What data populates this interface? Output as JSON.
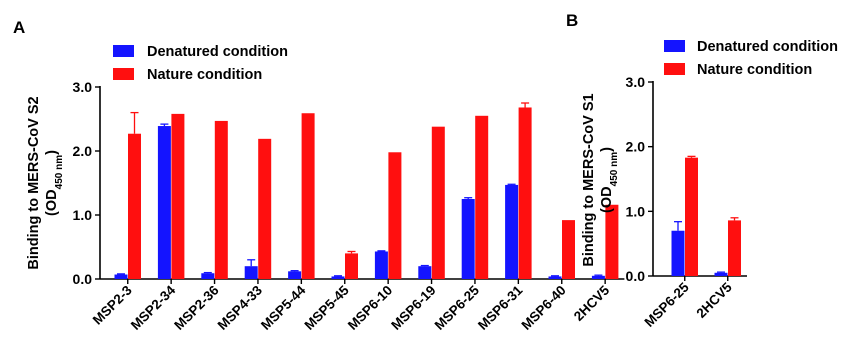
{
  "panels": [
    {
      "letter": "A",
      "chart_data": {
        "type": "bar",
        "title": "",
        "xlabel": "",
        "ylabel": "Binding to MERS-CoV S2",
        "ylabel_line2": {
          "main": "(OD",
          "sub": "450 nm",
          "close": ")"
        },
        "ylim": [
          0,
          3
        ],
        "yticks": [
          "0.0",
          "1.0",
          "2.0",
          "3.0"
        ],
        "grid": false,
        "legend_position": "top-left",
        "categories": [
          "MSP2-3",
          "MSP2-34",
          "MSP2-36",
          "MSP4-33",
          "MSP5-44",
          "MSP5-45",
          "MSP6-10",
          "MSP6-19",
          "MSP6-25",
          "MSP6-31",
          "MSP6-40",
          "2HCV5"
        ],
        "series": [
          {
            "name": "Denatured condition",
            "color": "#1414ff",
            "values": [
              0.07,
              2.39,
              0.09,
              0.2,
              0.12,
              0.04,
              0.43,
              0.2,
              1.25,
              1.47,
              0.04,
              0.05
            ],
            "errors": [
              0.01,
              0.03,
              0.01,
              0.1,
              0.01,
              0.01,
              0.01,
              0.01,
              0.02,
              0.01,
              0.01,
              0.01
            ]
          },
          {
            "name": "Nature condition",
            "color": "#ff0f0f",
            "values": [
              2.27,
              2.58,
              2.47,
              2.19,
              2.59,
              0.4,
              1.98,
              2.38,
              2.55,
              2.68,
              0.92,
              1.16
            ],
            "errors": [
              0.33,
              0.0,
              0.0,
              0.0,
              0.0,
              0.03,
              0.0,
              0.0,
              0.0,
              0.07,
              0.0,
              0.0
            ]
          }
        ]
      }
    },
    {
      "letter": "B",
      "chart_data": {
        "type": "bar",
        "title": "",
        "xlabel": "",
        "ylabel": "Binding to MERS-CoV S1",
        "ylabel_line2": {
          "main": "(OD",
          "sub": "450 nm",
          "close": ")"
        },
        "ylim": [
          0,
          3
        ],
        "yticks": [
          "0.0",
          "1.0",
          "2.0",
          "3.0"
        ],
        "grid": false,
        "legend_position": "top-left",
        "categories": [
          "MSP6-25",
          "2HCV5"
        ],
        "series": [
          {
            "name": "Denatured condition",
            "color": "#1414ff",
            "values": [
              0.7,
              0.05
            ],
            "errors": [
              0.14,
              0.01
            ]
          },
          {
            "name": "Nature condition",
            "color": "#ff0f0f",
            "values": [
              1.83,
              0.86
            ],
            "errors": [
              0.02,
              0.04
            ]
          }
        ]
      }
    }
  ]
}
